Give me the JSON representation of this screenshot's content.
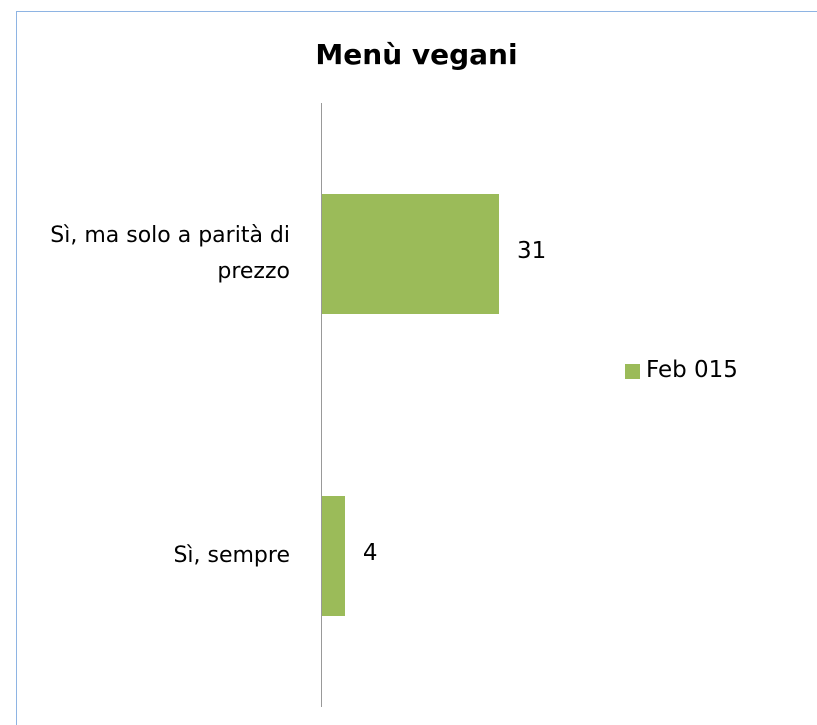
{
  "chart_data": {
    "type": "bar",
    "orientation": "horizontal",
    "title": "Menù vegani",
    "categories": [
      "Sì, ma solo a parità di prezzo",
      "Sì, sempre"
    ],
    "series": [
      {
        "name": "Feb 015",
        "color": "#9bbb59",
        "values": [
          31,
          4
        ]
      }
    ],
    "legend": "right"
  }
}
